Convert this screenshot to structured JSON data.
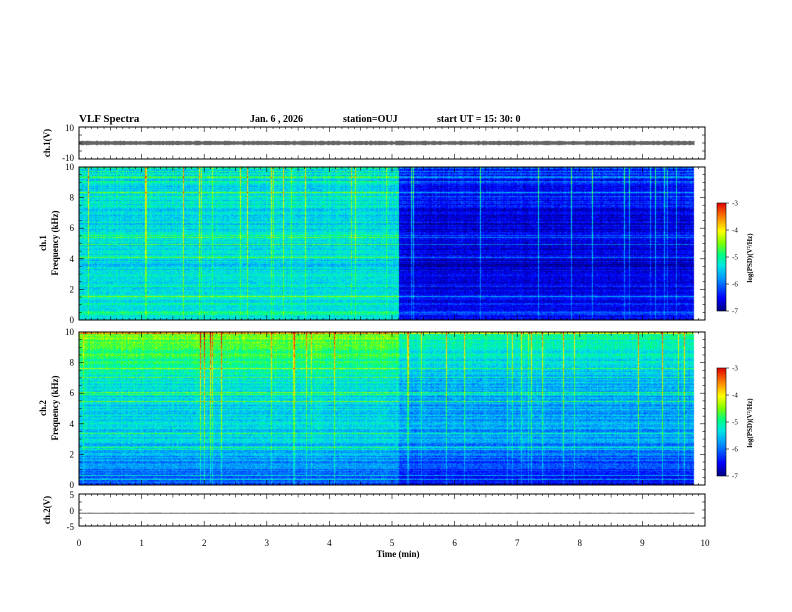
{
  "header": {
    "title": "VLF Spectra",
    "date": "Jan. 6 , 2026",
    "station": "station=OUJ",
    "start": "start UT =  15: 30: 0"
  },
  "chart_data": [
    {
      "type": "line",
      "name": "ch1-waveform",
      "ylabel": "ch.1(V)",
      "ylim": [
        -10,
        10
      ],
      "yticks": [
        "10",
        "-10"
      ],
      "xlim": [
        0,
        10
      ],
      "x_extent": [
        0,
        9.83
      ],
      "level": 0,
      "amplitude": 1.5
    },
    {
      "type": "heatmap",
      "name": "ch1-spectrogram",
      "ylabel": "ch.1\nFrequency (kHz)",
      "ylim": [
        0,
        10
      ],
      "yticks": [
        "0",
        "2",
        "4",
        "6",
        "8",
        "10"
      ],
      "xlim": [
        0,
        10
      ],
      "x_extent": [
        0,
        9.83
      ],
      "zlim": [
        -7,
        -3
      ],
      "segments": [
        {
          "x": [
            0,
            5.1
          ],
          "low_band_level": -5.2,
          "mid_level": -5.4,
          "high_level": -5.3
        },
        {
          "x": [
            5.1,
            9.83
          ],
          "low_band_level": -6.4,
          "mid_level": -6.7,
          "high_level": -6.3
        }
      ],
      "colorbar": {
        "label": "log(PSD)(V²/Hz)",
        "ticks": [
          "-3",
          "-4",
          "-5",
          "-6",
          "-7"
        ]
      }
    },
    {
      "type": "heatmap",
      "name": "ch2-spectrogram",
      "ylabel": "ch.2\nFrequency (kHz)",
      "ylim": [
        0,
        10
      ],
      "yticks": [
        "0",
        "2",
        "4",
        "6",
        "8",
        "10"
      ],
      "xlim": [
        0,
        10
      ],
      "x_extent": [
        0,
        9.83
      ],
      "zlim": [
        -7,
        -3
      ],
      "segments": [
        {
          "x": [
            0,
            5.1
          ],
          "low_band_level": -6.2,
          "mid_level": -5.4,
          "high_level": -4.4
        },
        {
          "x": [
            5.1,
            9.83
          ],
          "low_band_level": -6.6,
          "mid_level": -5.7,
          "high_level": -4.9
        }
      ],
      "colorbar": {
        "label": "log(PSD)(V²/Hz)",
        "ticks": [
          "-3",
          "-4",
          "-5",
          "-6",
          "-7"
        ]
      }
    },
    {
      "type": "line",
      "name": "ch2-waveform",
      "ylabel": "ch.2(V)",
      "ylim": [
        -5,
        5
      ],
      "yticks": [
        "5",
        "0",
        "-5"
      ],
      "xlim": [
        0,
        10
      ],
      "x_extent": [
        0,
        9.83
      ],
      "level": -1,
      "amplitude": 0.2
    }
  ],
  "xaxis": {
    "label": "Time  (min)",
    "ticks": [
      "0",
      "1",
      "2",
      "3",
      "4",
      "5",
      "6",
      "7",
      "8",
      "9",
      "10"
    ]
  },
  "colors": {
    "colormap": [
      "#00008b",
      "#0000ff",
      "#0090ff",
      "#00e5e5",
      "#00ff7f",
      "#7fff00",
      "#ffff00",
      "#ff9900",
      "#ff0000",
      "#b30000"
    ],
    "axis": "#000000"
  }
}
